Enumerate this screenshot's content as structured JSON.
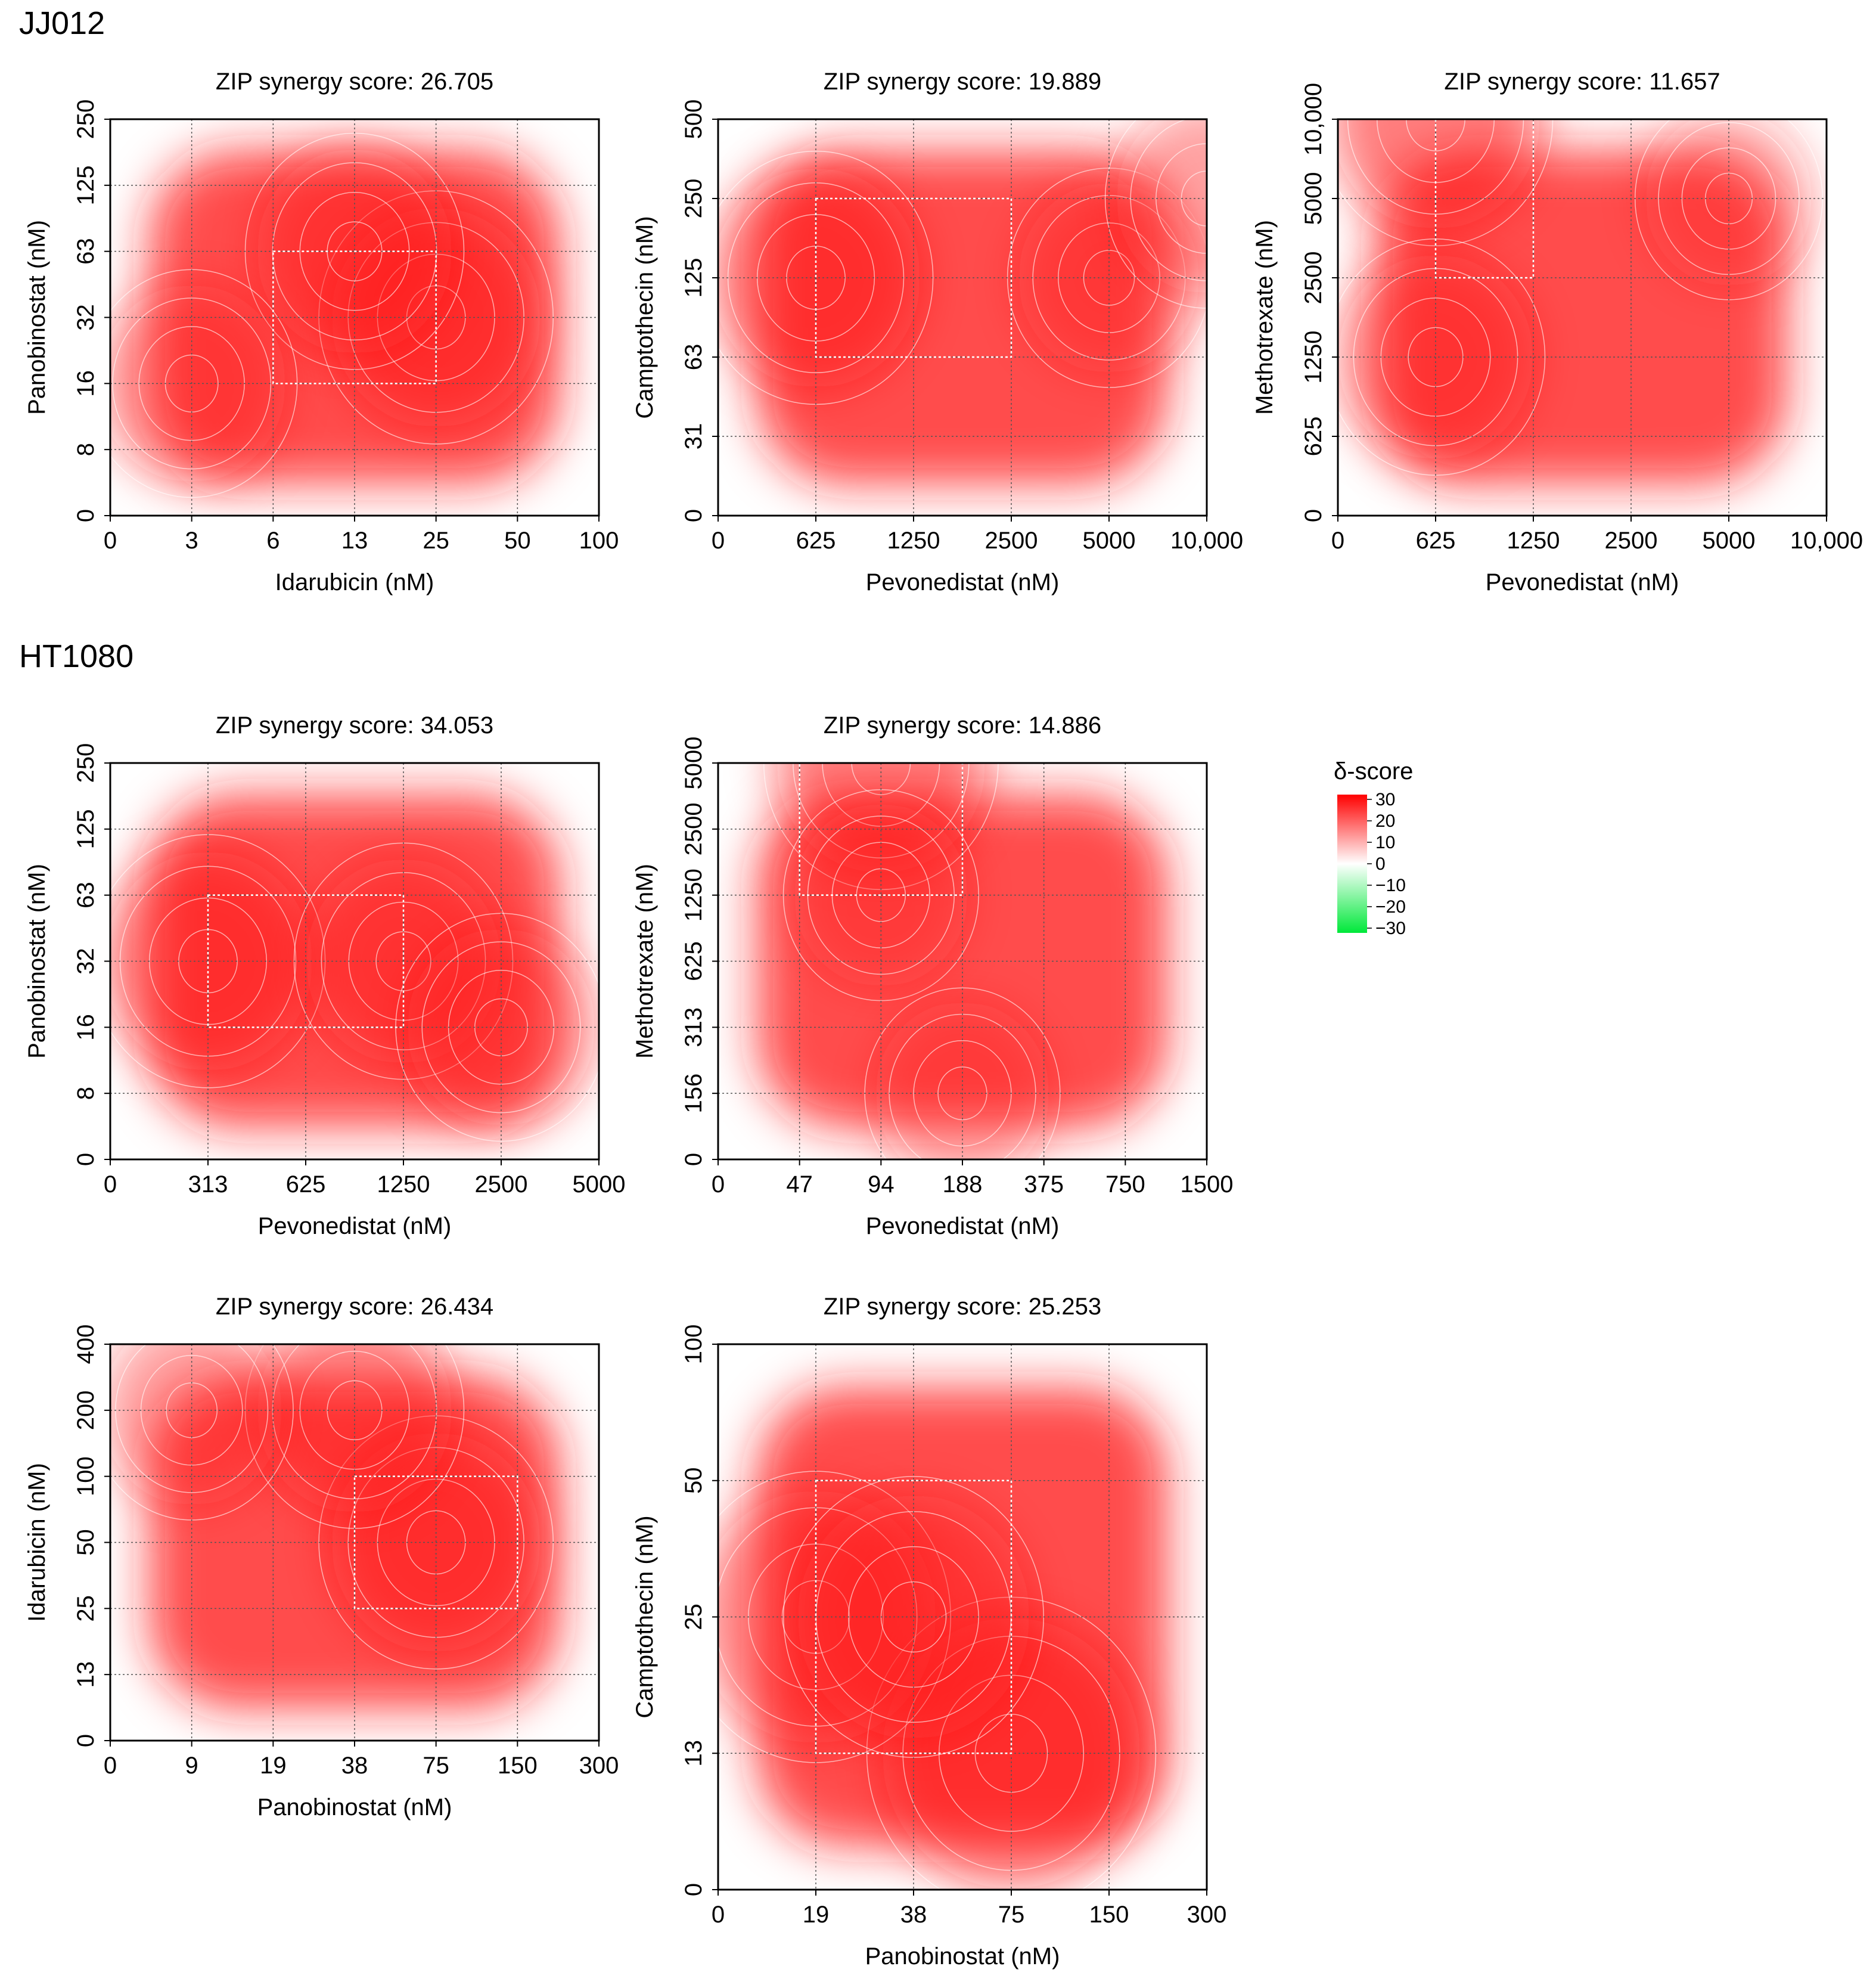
{
  "sections": [
    {
      "label": "JJ012"
    },
    {
      "label": "HT1080"
    }
  ],
  "legend": {
    "title": "δ-score",
    "ticks": [
      "30",
      "20",
      "10",
      "0",
      "−10",
      "−20",
      "−30"
    ],
    "colors": {
      "high": "#ff0000",
      "mid": "#ffffff",
      "low": "#00e83a"
    }
  },
  "colors": {
    "synergy": "#ff1a1a",
    "contour": "#ffffff",
    "grid": "#555555"
  },
  "chart_data": [
    {
      "type": "heatmap",
      "title": "ZIP synergy score: 26.705",
      "xlabel": "Idarubicin (nM)",
      "ylabel": "Panobinostat (nM)",
      "xticks": [
        "0",
        "3",
        "6",
        "13",
        "25",
        "50",
        "100"
      ],
      "yticks": [
        "0",
        "8",
        "16",
        "32",
        "63",
        "125",
        "250"
      ],
      "grid": true,
      "highlight_box": {
        "x": [
          "6",
          "25"
        ],
        "y": [
          "16",
          "63"
        ]
      },
      "peak_score": 30,
      "hotspots": [
        {
          "x": "25",
          "y": "32",
          "score": 30
        },
        {
          "x": "13",
          "y": "63",
          "score": 26
        },
        {
          "x": "3",
          "y": "16",
          "score": 24
        }
      ]
    },
    {
      "type": "heatmap",
      "title": "ZIP synergy score: 19.889",
      "xlabel": "Pevonedistat (nM)",
      "ylabel": "Camptothecin (nM)",
      "xticks": [
        "0",
        "625",
        "1250",
        "2500",
        "5000",
        "10,000"
      ],
      "yticks": [
        "0",
        "31",
        "63",
        "125",
        "250",
        "500"
      ],
      "grid": true,
      "highlight_box": {
        "x": [
          "625",
          "2500"
        ],
        "y": [
          "63",
          "250"
        ]
      },
      "peak_score": 30,
      "hotspots": [
        {
          "x": "625",
          "y": "125",
          "score": 30
        },
        {
          "x": "5000",
          "y": "125",
          "score": 22
        },
        {
          "x": "10,000",
          "y": "250",
          "score": 22
        }
      ]
    },
    {
      "type": "heatmap",
      "title": "ZIP synergy score: 11.657",
      "xlabel": "Pevonedistat (nM)",
      "ylabel": "Methotrexate (nM)",
      "xticks": [
        "0",
        "625",
        "1250",
        "2500",
        "5000",
        "10,000"
      ],
      "yticks": [
        "0",
        "625",
        "1250",
        "2500",
        "5000",
        "10,000"
      ],
      "grid": true,
      "highlight_box": {
        "x": [
          "625",
          "1250"
        ],
        "y": [
          "2500",
          "10,000"
        ]
      },
      "peak_score": 30,
      "hotspots": [
        {
          "x": "625",
          "y": "10,000",
          "score": 30
        },
        {
          "x": "625",
          "y": "1250",
          "score": 26
        },
        {
          "x": "5000",
          "y": "5000",
          "score": 18
        }
      ]
    },
    {
      "type": "heatmap",
      "title": "ZIP synergy score: 34.053",
      "xlabel": "Pevonedistat (nM)",
      "ylabel": "Panobinostat (nM)",
      "xticks": [
        "0",
        "313",
        "625",
        "1250",
        "2500",
        "5000"
      ],
      "yticks": [
        "0",
        "8",
        "16",
        "32",
        "63",
        "125",
        "250"
      ],
      "grid": true,
      "highlight_box": {
        "x": [
          "313",
          "1250"
        ],
        "y": [
          "16",
          "63"
        ]
      },
      "peak_score": 30,
      "hotspots": [
        {
          "x": "313",
          "y": "32",
          "score": 30
        },
        {
          "x": "1250",
          "y": "32",
          "score": 26
        },
        {
          "x": "2500",
          "y": "16",
          "score": 24
        }
      ]
    },
    {
      "type": "heatmap",
      "title": "ZIP synergy score: 14.886",
      "xlabel": "Pevonedistat (nM)",
      "ylabel": "Methotrexate (nM)",
      "xticks": [
        "0",
        "47",
        "94",
        "188",
        "375",
        "750",
        "1500"
      ],
      "yticks": [
        "0",
        "156",
        "313",
        "625",
        "1250",
        "2500",
        "5000"
      ],
      "grid": true,
      "highlight_box": {
        "x": [
          "47",
          "188"
        ],
        "y": [
          "1250",
          "5000"
        ]
      },
      "peak_score": 30,
      "hotspots": [
        {
          "x": "94",
          "y": "5000",
          "score": 30
        },
        {
          "x": "94",
          "y": "1250",
          "score": 20
        },
        {
          "x": "188",
          "y": "156",
          "score": 20
        }
      ]
    },
    {
      "type": "heatmap",
      "title": "ZIP synergy score: 26.434",
      "xlabel": "Panobinostat (nM)",
      "ylabel": "Idarubicin (nM)",
      "xticks": [
        "0",
        "9",
        "19",
        "38",
        "75",
        "150",
        "300"
      ],
      "yticks": [
        "0",
        "13",
        "25",
        "50",
        "100",
        "200",
        "400"
      ],
      "grid": true,
      "highlight_box": {
        "x": [
          "38",
          "150"
        ],
        "y": [
          "25",
          "100"
        ]
      },
      "peak_score": 30,
      "hotspots": [
        {
          "x": "75",
          "y": "50",
          "score": 30
        },
        {
          "x": "38",
          "y": "200",
          "score": 26
        },
        {
          "x": "9",
          "y": "200",
          "score": 22
        }
      ]
    },
    {
      "type": "heatmap",
      "title": "ZIP synergy score: 25.253",
      "xlabel": "Panobinostat (nM)",
      "ylabel": "Camptothecin (nM)",
      "xticks": [
        "0",
        "19",
        "38",
        "75",
        "150",
        "300"
      ],
      "yticks": [
        "0",
        "13",
        "25",
        "50",
        "100"
      ],
      "grid": true,
      "highlight_box": {
        "x": [
          "19",
          "75"
        ],
        "y": [
          "13",
          "50"
        ]
      },
      "peak_score": 30,
      "hotspots": [
        {
          "x": "75",
          "y": "13",
          "score": 30
        },
        {
          "x": "19",
          "y": "25",
          "score": 26
        },
        {
          "x": "38",
          "y": "25",
          "score": 24
        }
      ]
    }
  ]
}
